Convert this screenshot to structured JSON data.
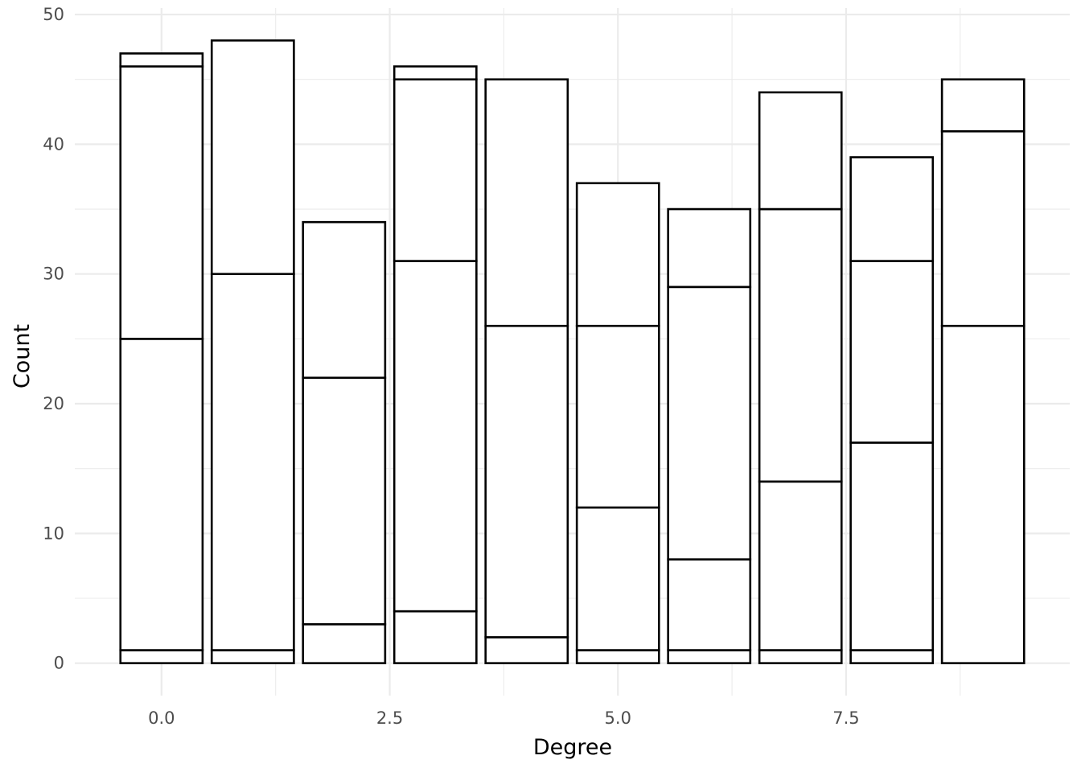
{
  "chart_data": {
    "type": "bar",
    "stacked": true,
    "xlabel": "Degree",
    "ylabel": "Count",
    "x": [
      0,
      1,
      2,
      3,
      4,
      5,
      6,
      7,
      8,
      9
    ],
    "stack_boundaries": [
      [
        1,
        25,
        46,
        47
      ],
      [
        1,
        30,
        48
      ],
      [
        3,
        22,
        34
      ],
      [
        4,
        31,
        45,
        46
      ],
      [
        2,
        26,
        45
      ],
      [
        1,
        12,
        26,
        37
      ],
      [
        1,
        8,
        29,
        35
      ],
      [
        1,
        14,
        35,
        44
      ],
      [
        1,
        17,
        31,
        39
      ],
      [
        26,
        41,
        45
      ]
    ],
    "totals": [
      47,
      48,
      34,
      46,
      45,
      37,
      35,
      44,
      39,
      45
    ],
    "xlim": [
      -0.95,
      9.95
    ],
    "ylim": [
      -2.5,
      50.5
    ],
    "x_ticks": [
      0.0,
      2.5,
      5.0,
      7.5
    ],
    "x_tick_labels": [
      "0.0",
      "2.5",
      "5.0",
      "7.5"
    ],
    "y_ticks": [
      0,
      10,
      20,
      30,
      40,
      50
    ],
    "y_tick_labels": [
      "0",
      "10",
      "20",
      "30",
      "40",
      "50"
    ],
    "bar_width": 0.9,
    "bar_fill": "#ffffff",
    "bar_outline": "#000000",
    "grid": true,
    "legend": "none"
  }
}
